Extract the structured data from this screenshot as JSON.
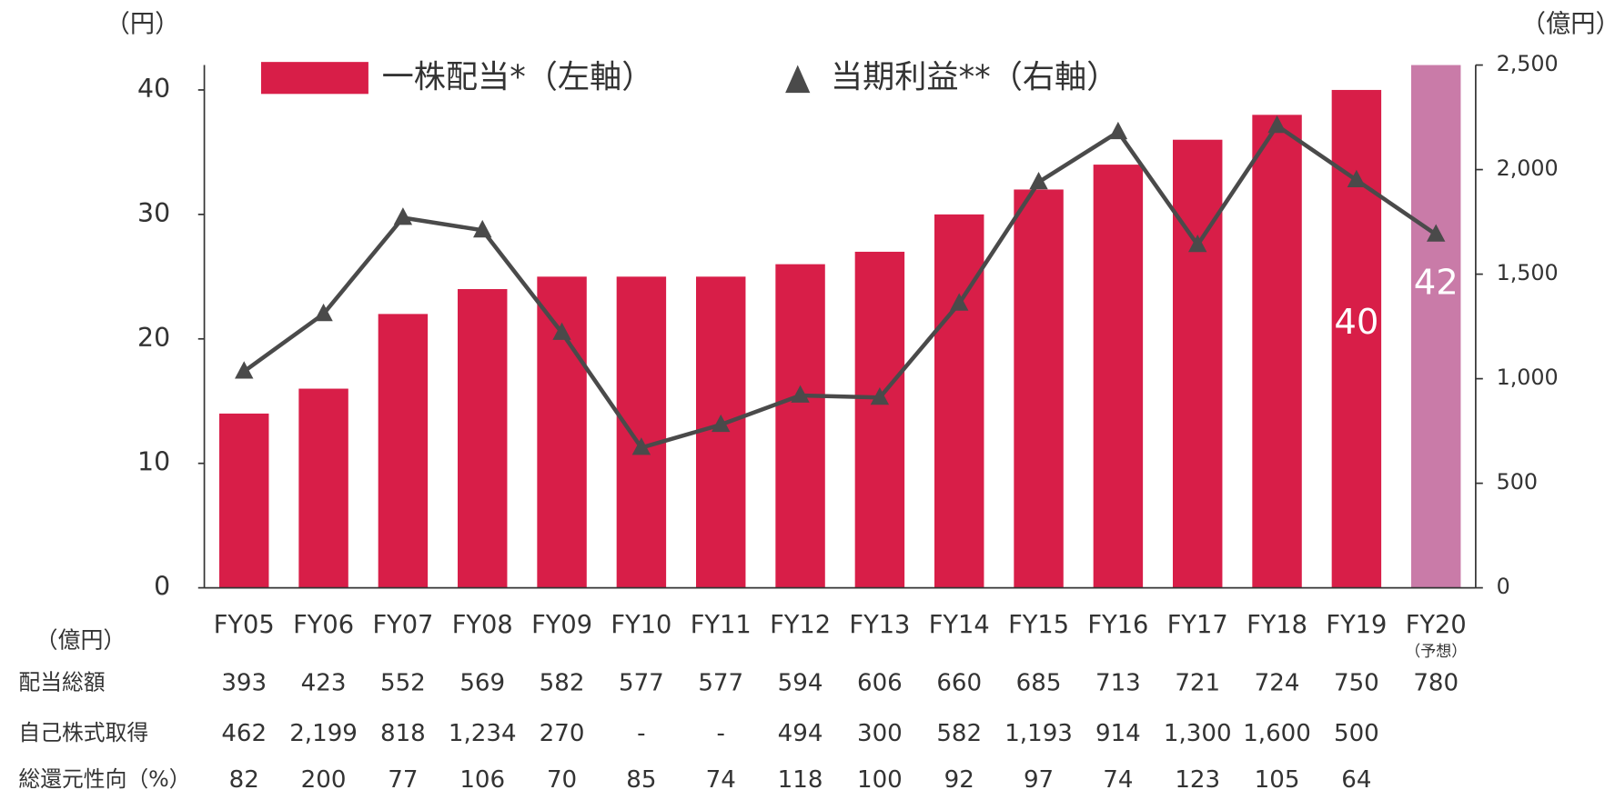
{
  "chart_data": {
    "type": "bar_line",
    "left_axis_unit": "（円）",
    "right_axis_unit": "（億円）",
    "categories": [
      "FY05",
      "FY06",
      "FY07",
      "FY08",
      "FY09",
      "FY10",
      "FY11",
      "FY12",
      "FY13",
      "FY14",
      "FY15",
      "FY16",
      "FY17",
      "FY18",
      "FY19",
      "FY20"
    ],
    "forecast_note": "（予想）",
    "series": [
      {
        "name": "一株配当*（左軸）",
        "type": "bar",
        "axis": "y",
        "colors": [
          "#d81e48",
          "#d81e48",
          "#d81e48",
          "#d81e48",
          "#d81e48",
          "#d81e48",
          "#d81e48",
          "#d81e48",
          "#d81e48",
          "#d81e48",
          "#d81e48",
          "#d81e48",
          "#d81e48",
          "#d81e48",
          "#d81e48",
          "#c97ba8"
        ],
        "values": [
          14,
          16,
          22,
          24,
          25,
          25,
          25,
          26,
          27,
          30,
          32,
          34,
          36,
          38,
          40,
          42
        ]
      },
      {
        "name": "当期利益**（右軸）",
        "type": "line",
        "axis": "y2",
        "color": "#4a4a4a",
        "values": [
          1035,
          1310,
          1770,
          1710,
          1220,
          670,
          780,
          920,
          910,
          1360,
          1940,
          2180,
          1640,
          2210,
          1950,
          1690
        ]
      }
    ],
    "ylim": [
      0,
      42
    ],
    "yticks": [
      0,
      10,
      20,
      30,
      40
    ],
    "y2lim": [
      0,
      2500
    ],
    "y2ticks": [
      0,
      500,
      {
        "value": 1000,
        "label": "1,000"
      },
      {
        "value": 1500,
        "label": "1,500"
      },
      {
        "value": 2000,
        "label": "2,000"
      },
      {
        "value": 2500,
        "label": "2,500"
      }
    ],
    "grid": false
  },
  "table": {
    "unit": "（億円）",
    "rows": [
      {
        "label": "配当総額",
        "cells": [
          "393",
          "423",
          "552",
          "569",
          "582",
          "577",
          "577",
          "594",
          "606",
          "660",
          "685",
          "713",
          "721",
          "724",
          "750",
          "780"
        ]
      },
      {
        "label": "自己株式取得",
        "cells": [
          "462",
          "2,199",
          "818",
          "1,234",
          "270",
          "-",
          "-",
          "494",
          "300",
          "582",
          "1,193",
          "914",
          "1,300",
          "1,600",
          "500"
        ]
      },
      {
        "label": "総還元性向（%）",
        "cells": [
          "82",
          "200",
          "77",
          "106",
          "70",
          "85",
          "74",
          "118",
          "100",
          "92",
          "97",
          "74",
          "123",
          "105",
          "64"
        ]
      }
    ]
  }
}
